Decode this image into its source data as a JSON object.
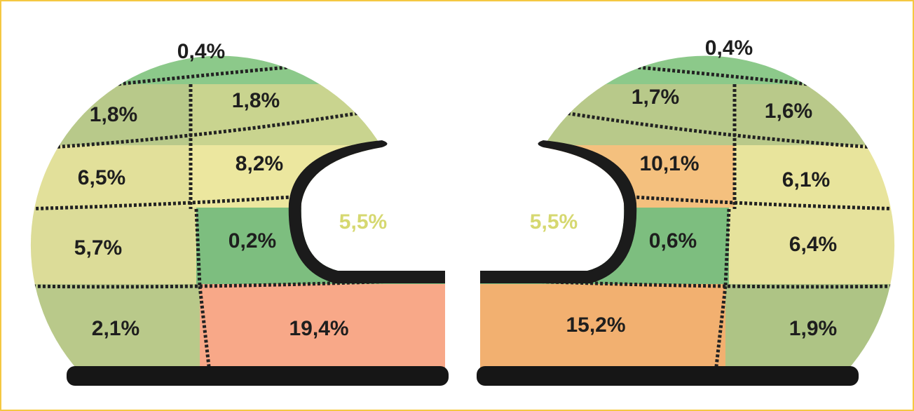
{
  "left_helmet": {
    "opening_label": "5,5%",
    "zones": [
      "0,4%",
      "1,8%",
      "1,8%",
      "6,5%",
      "8,2%",
      "5,7%",
      "0,2%",
      "2,1%",
      "19,4%"
    ]
  },
  "right_helmet": {
    "opening_label": "5,5%",
    "zones": [
      "0,4%",
      "1,7%",
      "1,6%",
      "10,1%",
      "6,1%",
      "0,6%",
      "6,4%",
      "15,2%",
      "1,9%"
    ]
  }
}
